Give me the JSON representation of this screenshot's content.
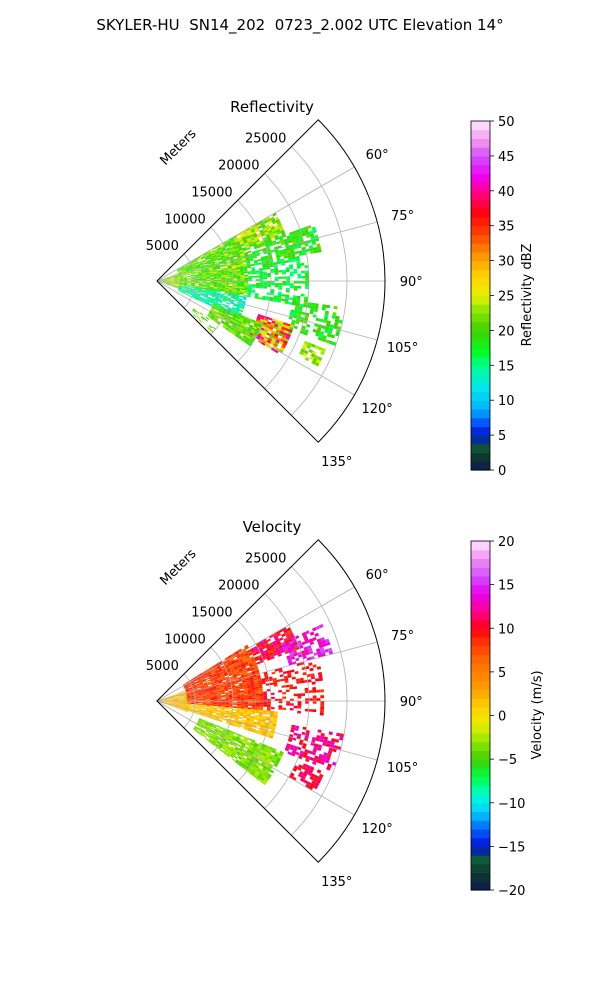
{
  "figure": {
    "suptitle": "SKYLER-HU  SN14_202  0723_2.002 UTC Elevation 14°"
  },
  "colors": {
    "background": "#ffffff",
    "grid": "#b0b0b0",
    "axis": "#000000"
  },
  "chart_data": [
    {
      "type": "heatmap",
      "projection": "polar-sector",
      "title": "Reflectivity",
      "radial_label": "Meters",
      "radial_ticks": [
        "5000",
        "10000",
        "15000",
        "20000",
        "25000"
      ],
      "angle_ticks": [
        "60°",
        "75°",
        "90°",
        "105°",
        "120°",
        "135°"
      ],
      "range_limits": [
        0,
        30000
      ],
      "angle_limits_deg": [
        45,
        135
      ],
      "grid": true,
      "colorbar": {
        "label": "Reflectivity dBZ",
        "range": [
          0,
          50
        ],
        "ticks": [
          "0",
          "5",
          "10",
          "15",
          "20",
          "25",
          "30",
          "35",
          "40",
          "45",
          "50"
        ],
        "stops": [
          {
            "v": 0,
            "c": "#0b1a55"
          },
          {
            "v": 2,
            "c": "#0e3a2a"
          },
          {
            "v": 3.5,
            "c": "#0c5a3a"
          },
          {
            "v": 5,
            "c": "#0010d8"
          },
          {
            "v": 7,
            "c": "#0060ff"
          },
          {
            "v": 9,
            "c": "#00b8ff"
          },
          {
            "v": 12,
            "c": "#00e8e8"
          },
          {
            "v": 15,
            "c": "#00ff90"
          },
          {
            "v": 17,
            "c": "#00ff20"
          },
          {
            "v": 20,
            "c": "#40d000"
          },
          {
            "v": 23,
            "c": "#90e800"
          },
          {
            "v": 25,
            "c": "#e8f000"
          },
          {
            "v": 28,
            "c": "#ffd000"
          },
          {
            "v": 31,
            "c": "#ff9000"
          },
          {
            "v": 34,
            "c": "#ff4000"
          },
          {
            "v": 37,
            "c": "#ff0010"
          },
          {
            "v": 40,
            "c": "#ff0090"
          },
          {
            "v": 42,
            "c": "#f000f0"
          },
          {
            "v": 45,
            "c": "#d050ff"
          },
          {
            "v": 47,
            "c": "#f090f0"
          },
          {
            "v": 50,
            "c": "#ffe8ff"
          }
        ]
      },
      "echo_regions": [
        {
          "r": [
            300,
            3000
          ],
          "a": [
            70,
            110
          ],
          "v": [
            19,
            26
          ],
          "density": 0.95
        },
        {
          "r": [
            3000,
            12000
          ],
          "a": [
            60,
            100
          ],
          "v": [
            17,
            25
          ],
          "density": 0.92
        },
        {
          "r": [
            3000,
            12000
          ],
          "a": [
            100,
            115
          ],
          "v": [
            10,
            18
          ],
          "density": 0.8
        },
        {
          "r": [
            12000,
            18000
          ],
          "a": [
            60,
            70
          ],
          "v": [
            18,
            28
          ],
          "density": 0.85
        },
        {
          "r": [
            12000,
            22000
          ],
          "a": [
            70,
            80
          ],
          "v": [
            16,
            22
          ],
          "density": 0.75
        },
        {
          "r": [
            12000,
            20000
          ],
          "a": [
            80,
            100
          ],
          "v": [
            14,
            20
          ],
          "density": 0.6
        },
        {
          "r": [
            18000,
            25000
          ],
          "a": [
            98,
            110
          ],
          "v": [
            16,
            22
          ],
          "density": 0.6
        },
        {
          "r": [
            14000,
            19000
          ],
          "a": [
            108,
            121
          ],
          "v": [
            20,
            42
          ],
          "density": 0.9
        },
        {
          "r": [
            8000,
            15000
          ],
          "a": [
            112,
            125
          ],
          "v": [
            18,
            24
          ],
          "density": 0.85
        },
        {
          "r": [
            21000,
            24000
          ],
          "a": [
            112,
            118
          ],
          "v": [
            20,
            26
          ],
          "density": 0.75
        },
        {
          "r": [
            6000,
            10000
          ],
          "a": [
            125,
            133
          ],
          "v": [
            18,
            23
          ],
          "density": 0.3
        }
      ]
    },
    {
      "type": "heatmap",
      "projection": "polar-sector",
      "title": "Velocity",
      "radial_label": "Meters",
      "radial_ticks": [
        "5000",
        "10000",
        "15000",
        "20000",
        "25000"
      ],
      "angle_ticks": [
        "60°",
        "75°",
        "90°",
        "105°",
        "120°",
        "135°"
      ],
      "range_limits": [
        0,
        30000
      ],
      "angle_limits_deg": [
        45,
        135
      ],
      "grid": true,
      "colorbar": {
        "label": "Velocity (m/s)",
        "range": [
          -20,
          20
        ],
        "ticks": [
          "−20",
          "−15",
          "−10",
          "−5",
          "0",
          "5",
          "10",
          "15",
          "20"
        ],
        "stops": [
          {
            "v": -20,
            "c": "#0b1a55"
          },
          {
            "v": -18,
            "c": "#0e3a2a"
          },
          {
            "v": -16.5,
            "c": "#0c5a3a"
          },
          {
            "v": -15,
            "c": "#0010d8"
          },
          {
            "v": -13,
            "c": "#0060ff"
          },
          {
            "v": -11,
            "c": "#00d0ff"
          },
          {
            "v": -9,
            "c": "#00ffd0"
          },
          {
            "v": -7,
            "c": "#00ff40"
          },
          {
            "v": -5,
            "c": "#40d000"
          },
          {
            "v": -3,
            "c": "#90e800"
          },
          {
            "v": -1,
            "c": "#e8f000"
          },
          {
            "v": 1,
            "c": "#ffd000"
          },
          {
            "v": 3,
            "c": "#ffa000"
          },
          {
            "v": 6,
            "c": "#ff7000"
          },
          {
            "v": 8,
            "c": "#ff4000"
          },
          {
            "v": 10,
            "c": "#ff0010"
          },
          {
            "v": 12,
            "c": "#ff0090"
          },
          {
            "v": 14,
            "c": "#e800f0"
          },
          {
            "v": 16,
            "c": "#d050ff"
          },
          {
            "v": 18,
            "c": "#f090f0"
          },
          {
            "v": 20,
            "c": "#ffe8ff"
          }
        ]
      },
      "echo_regions": [
        {
          "r": [
            300,
            4000
          ],
          "a": [
            70,
            110
          ],
          "v": [
            0,
            4
          ],
          "density": 0.95
        },
        {
          "r": [
            4000,
            14000
          ],
          "a": [
            58,
            95
          ],
          "v": [
            6,
            10
          ],
          "density": 0.95
        },
        {
          "r": [
            4000,
            16000
          ],
          "a": [
            95,
            108
          ],
          "v": [
            0,
            3
          ],
          "density": 0.9
        },
        {
          "r": [
            14000,
            20000
          ],
          "a": [
            60,
            70
          ],
          "v": [
            8,
            13
          ],
          "density": 0.85
        },
        {
          "r": [
            18000,
            24000
          ],
          "a": [
            65,
            75
          ],
          "v": [
            12,
            16
          ],
          "density": 0.6
        },
        {
          "r": [
            14000,
            22000
          ],
          "a": [
            75,
            95
          ],
          "v": [
            8,
            11
          ],
          "density": 0.35
        },
        {
          "r": [
            18000,
            25000
          ],
          "a": [
            100,
            112
          ],
          "v": [
            9,
            14
          ],
          "density": 0.55
        },
        {
          "r": [
            6000,
            18000
          ],
          "a": [
            112,
            128
          ],
          "v": [
            -5,
            -2
          ],
          "density": 0.9
        },
        {
          "r": [
            20000,
            24000
          ],
          "a": [
            113,
            120
          ],
          "v": [
            9,
            12
          ],
          "density": 0.7
        }
      ]
    }
  ]
}
